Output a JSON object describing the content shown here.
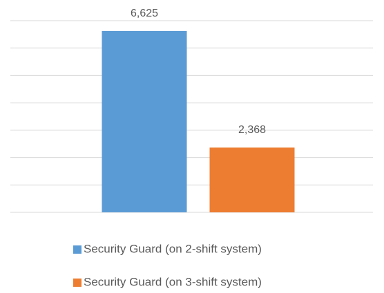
{
  "chart_data": {
    "type": "bar",
    "categories": [
      null
    ],
    "series": [
      {
        "name": "Security Guard (on 2-shift system)",
        "color": "#5b9bd5",
        "values": [
          6625
        ],
        "value_labels": [
          "6,625"
        ]
      },
      {
        "name": "Security Guard (on 3-shift system)",
        "color": "#ed7d31",
        "values": [
          2368
        ],
        "value_labels": [
          "2,368"
        ]
      }
    ],
    "ylim": [
      0,
      7000
    ],
    "yticks": [
      0,
      1000,
      2000,
      3000,
      4000,
      5000,
      6000,
      7000
    ],
    "grid": true,
    "legend": "bottom"
  }
}
